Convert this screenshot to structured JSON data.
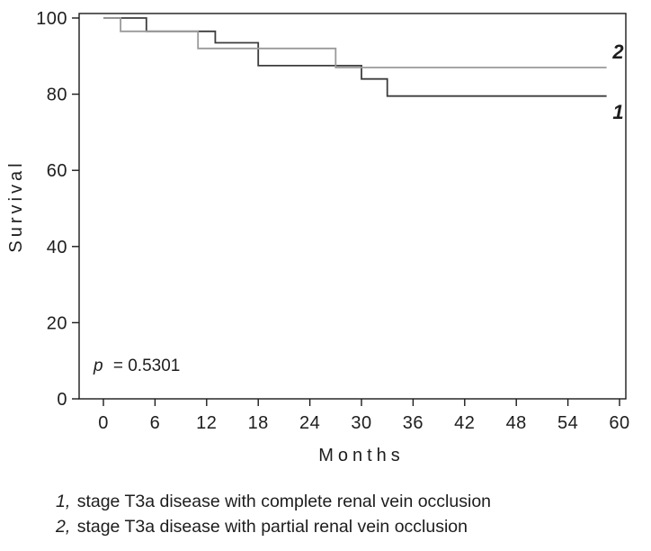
{
  "chart_data": {
    "type": "line",
    "subtype": "kaplan-meier-step",
    "title": "",
    "xlabel": "Months",
    "ylabel": "Survival",
    "xlim": [
      0,
      60
    ],
    "ylim": [
      0,
      100
    ],
    "xticks": [
      0,
      6,
      12,
      18,
      24,
      30,
      36,
      42,
      48,
      54,
      60
    ],
    "yticks": [
      0,
      20,
      40,
      60,
      80,
      100
    ],
    "grid": false,
    "frame": true,
    "annotation": {
      "p_italic": "p",
      "p_rest": "= 0.5301"
    },
    "series": [
      {
        "name": "1",
        "label": "1",
        "legend": "stage T3a disease with complete renal vein occlusion",
        "color": "#3d3d3d",
        "end_label_pos": [
          59.2,
          73.5
        ],
        "points": [
          [
            0,
            100
          ],
          [
            5,
            100
          ],
          [
            5,
            96.5
          ],
          [
            13,
            96.5
          ],
          [
            13,
            93.5
          ],
          [
            18,
            93.5
          ],
          [
            18,
            87.5
          ],
          [
            30,
            87.5
          ],
          [
            30,
            84
          ],
          [
            33,
            84
          ],
          [
            33,
            79.5
          ],
          [
            58.5,
            79.5
          ]
        ]
      },
      {
        "name": "2",
        "label": "2",
        "legend": "stage T3a disease with partial renal vein occlusion",
        "color": "#9a9a9a",
        "end_label_pos": [
          59.2,
          89.4
        ],
        "points": [
          [
            0,
            100
          ],
          [
            2,
            100
          ],
          [
            2,
            96.5
          ],
          [
            11,
            96.5
          ],
          [
            11,
            92
          ],
          [
            27,
            92
          ],
          [
            27,
            87
          ],
          [
            58.5,
            87
          ]
        ]
      }
    ],
    "legend": [
      {
        "num": "1,",
        "text": "stage T3a disease with complete renal vein occlusion"
      },
      {
        "num": "2,",
        "text": "stage T3a disease with partial renal vein occlusion"
      }
    ]
  }
}
